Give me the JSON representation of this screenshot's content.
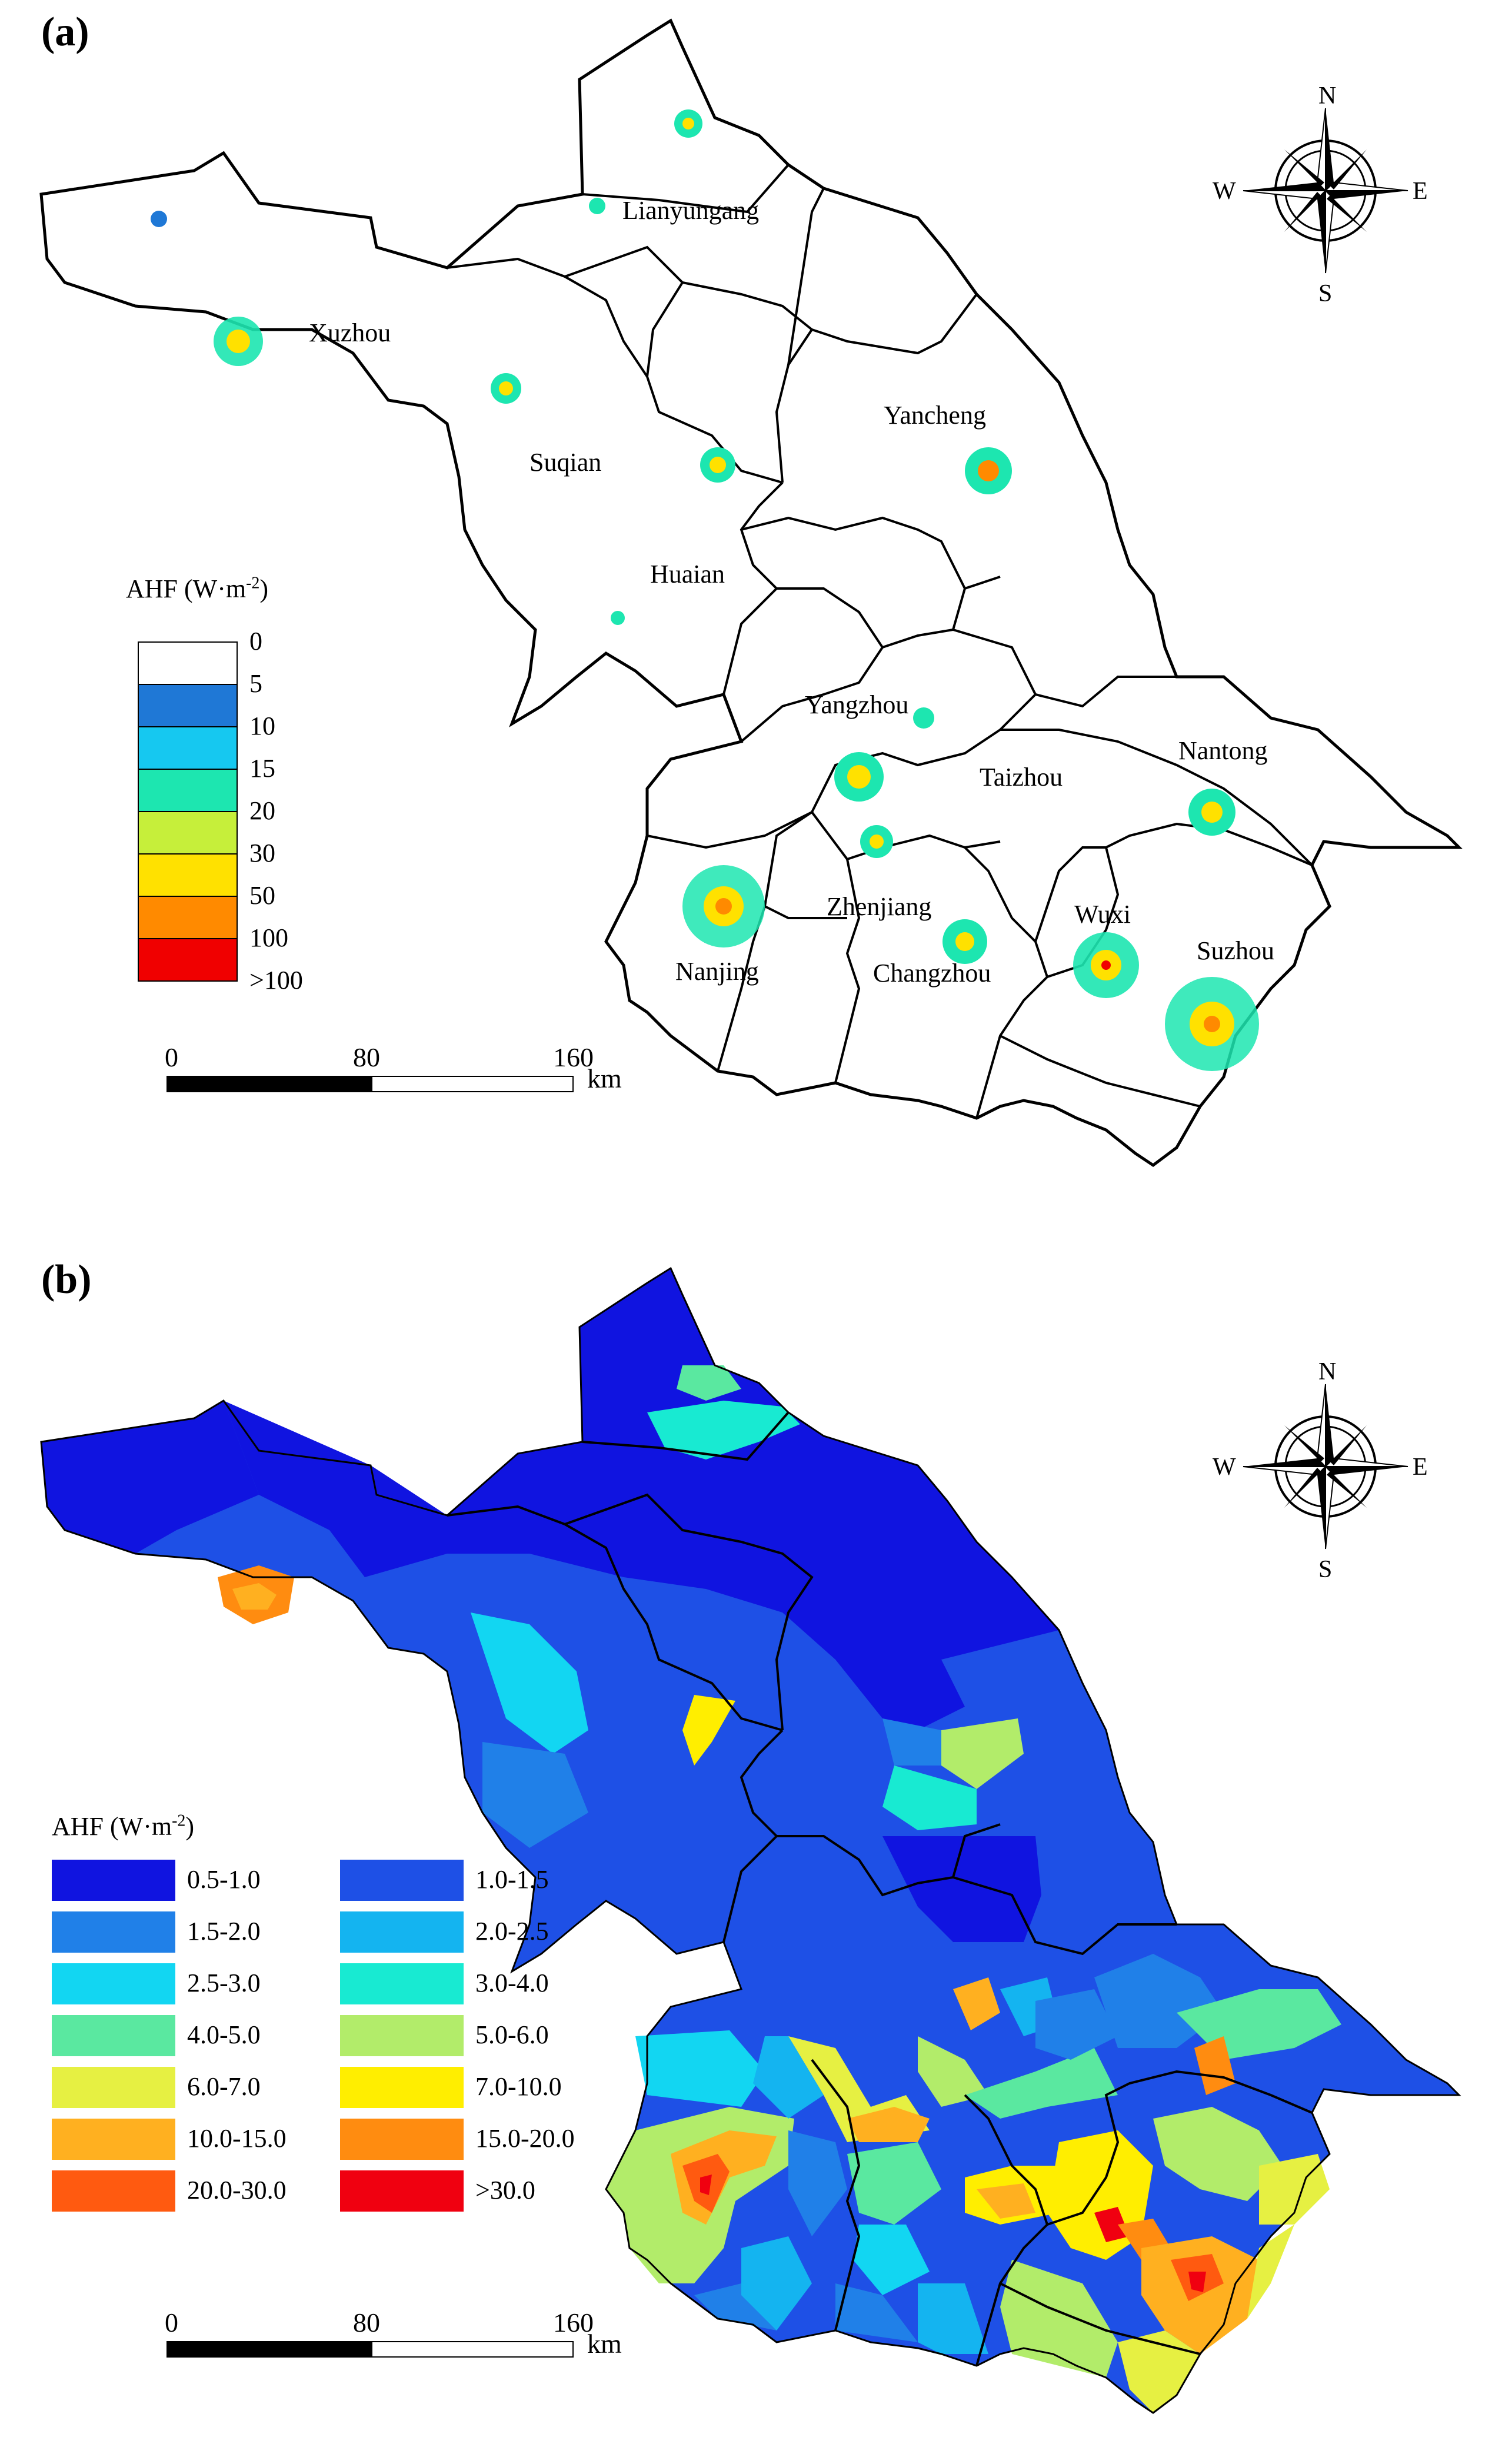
{
  "panel_a": {
    "label": "(a)",
    "cities": [
      "Lianyungang",
      "Xuzhou",
      "Suqian",
      "Yancheng",
      "Huaian",
      "Yangzhou",
      "Taizhou",
      "Nantong",
      "Zhenjiang",
      "Nanjing",
      "Changzhou",
      "Wuxi",
      "Suzhou"
    ],
    "legend_title": "AHF (W·m",
    "legend_title_sup": "-2",
    "legend_title_tail": ")",
    "legend_labels": [
      "0",
      "5",
      "10",
      "15",
      "20",
      "30",
      "50",
      "100",
      ">100"
    ],
    "legend_colors": [
      "#ffffff",
      "#1f78d6",
      "#16c8f0",
      "#1de6b0",
      "#c6ef3a",
      "#ffe100",
      "#ff8a00",
      "#f00000"
    ]
  },
  "panel_b": {
    "label": "(b)",
    "legend_title": "AHF (W·m",
    "legend_title_sup": "-2",
    "legend_title_tail": ")",
    "legend_items": [
      {
        "label": "0.5-1.0",
        "color": "#1014e0"
      },
      {
        "label": "1.0-1.5",
        "color": "#1e50e6"
      },
      {
        "label": "1.5-2.0",
        "color": "#2080e8"
      },
      {
        "label": "2.0-2.5",
        "color": "#14b4f0"
      },
      {
        "label": "2.5-3.0",
        "color": "#12d6f2"
      },
      {
        "label": "3.0-4.0",
        "color": "#18ead2"
      },
      {
        "label": "4.0-5.0",
        "color": "#5ae8a0"
      },
      {
        "label": "5.0-6.0",
        "color": "#b2ec6a"
      },
      {
        "label": "6.0-7.0",
        "color": "#e6f042"
      },
      {
        "label": "7.0-10.0",
        "color": "#ffee00"
      },
      {
        "label": "10.0-15.0",
        "color": "#ffb020"
      },
      {
        "label": "15.0-20.0",
        "color": "#ff8c10"
      },
      {
        "label": "20.0-30.0",
        "color": "#ff5a10"
      },
      {
        "label": ">30.0",
        "color": "#f00010"
      }
    ]
  },
  "scale_bar": {
    "ticks": [
      "0",
      "80",
      "160"
    ],
    "unit": "km"
  },
  "compass": {
    "n": "N",
    "s": "S",
    "e": "E",
    "w": "W"
  }
}
